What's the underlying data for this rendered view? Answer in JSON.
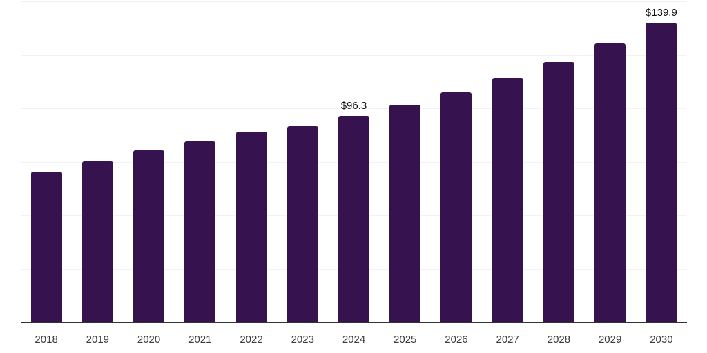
{
  "chart_data": {
    "type": "bar",
    "title": "",
    "xlabel": "",
    "ylabel": "",
    "categories": [
      "2018",
      "2019",
      "2020",
      "2021",
      "2022",
      "2023",
      "2024",
      "2025",
      "2026",
      "2027",
      "2028",
      "2029",
      "2030"
    ],
    "values": [
      70.3,
      75.1,
      80.4,
      84.6,
      89.0,
      91.6,
      96.3,
      101.5,
      107.4,
      114.3,
      121.5,
      130.3,
      139.9
    ],
    "annotations": [
      {
        "index": 6,
        "text": "$96.3"
      },
      {
        "index": 12,
        "text": "$139.9"
      }
    ],
    "ylim": [
      0,
      150
    ],
    "gridline_step": 25,
    "grid": true,
    "legend": "none",
    "y_axis_labels_visible": false,
    "colors": {
      "bar": "#36134f",
      "gridline": "#f2f2f3",
      "axis_line": "#333333",
      "tick_label": "#3c3c3c",
      "value_label": "#111111",
      "background": "#ffffff"
    }
  }
}
